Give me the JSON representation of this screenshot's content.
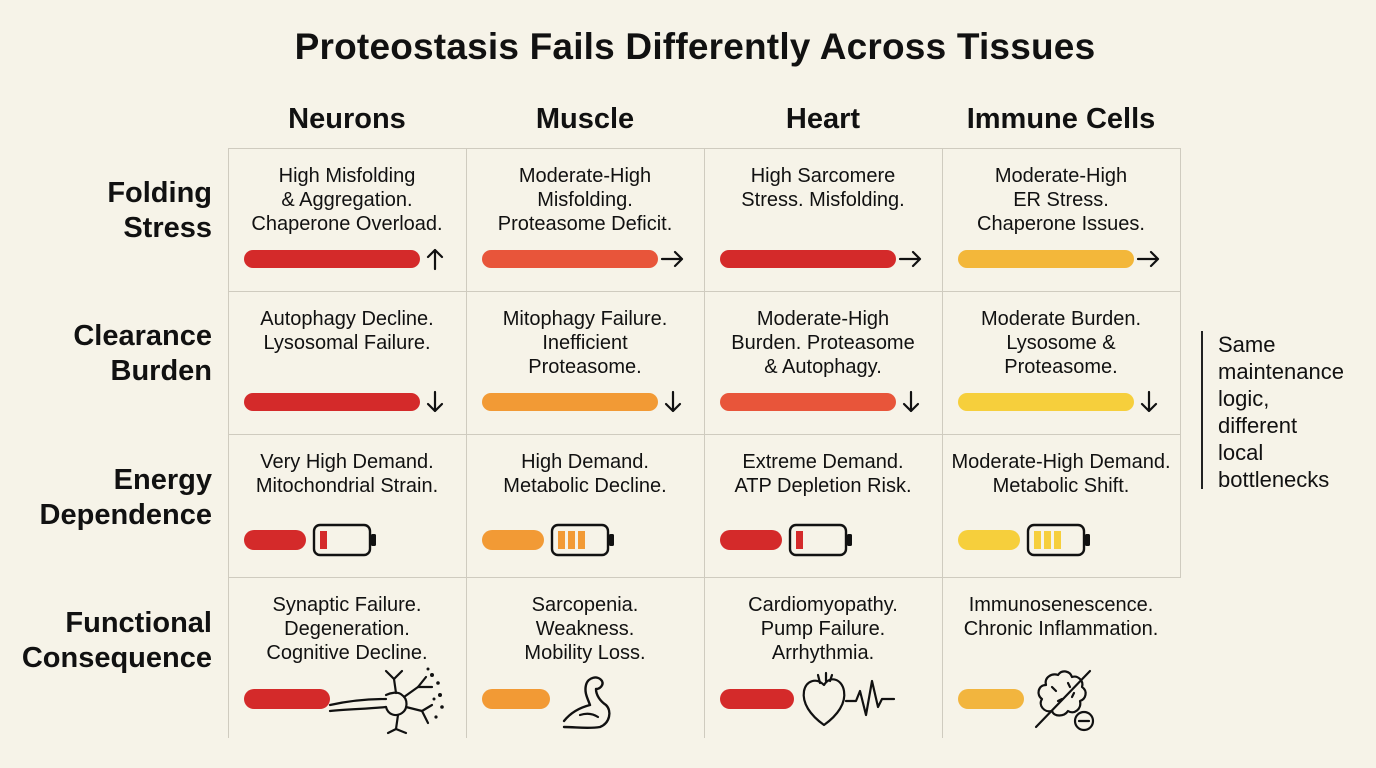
{
  "title": "Proteostasis Fails Differently Across Tissues",
  "columns": [
    "Neurons",
    "Muscle",
    "Heart",
    "Immune Cells"
  ],
  "rows": [
    {
      "label": "Folding\nStress",
      "indicator": "arrow"
    },
    {
      "label": "Clearance\nBurden",
      "indicator": "arrow"
    },
    {
      "label": "Energy\nDependence",
      "indicator": "battery"
    },
    {
      "label": "Functional\nConsequence",
      "indicator": "icon"
    }
  ],
  "cells": [
    [
      {
        "text": "High Misfolding\n& Aggregation.\nChaperone Overload.",
        "bar_color": "#d42a2a",
        "arrow": "up"
      },
      {
        "text": "Moderate-High\nMisfolding.\nProteasome Deficit.",
        "bar_color": "#e8553a",
        "arrow": "right"
      },
      {
        "text": "High Sarcomere\nStress. Misfolding.",
        "bar_color": "#d42a2a",
        "arrow": "right"
      },
      {
        "text": "Moderate-High\nER Stress.\nChaperone Issues.",
        "bar_color": "#f3b73a",
        "arrow": "right"
      }
    ],
    [
      {
        "text": "Autophagy Decline.\nLysosomal Failure.",
        "bar_color": "#d42a2a",
        "arrow": "down"
      },
      {
        "text": "Mitophagy Failure.\nInefficient\nProteasome.",
        "bar_color": "#f29a35",
        "arrow": "down"
      },
      {
        "text": "Moderate-High\nBurden. Proteasome\n& Autophagy.",
        "bar_color": "#e8553a",
        "arrow": "down"
      },
      {
        "text": "Moderate Burden.\nLysosome &\nProteasome.",
        "bar_color": "#f6cf3c",
        "arrow": "down"
      }
    ],
    [
      {
        "text": "Very High Demand.\nMitochondrial Strain.",
        "bar_color": "#d42a2a",
        "battery_level": 1,
        "battery_color": "#d42a2a"
      },
      {
        "text": "High Demand.\nMetabolic Decline.",
        "bar_color": "#f29a35",
        "battery_level": 3,
        "battery_color": "#f29a35"
      },
      {
        "text": "Extreme Demand.\nATP Depletion Risk.",
        "bar_color": "#d42a2a",
        "battery_level": 1,
        "battery_color": "#d42a2a"
      },
      {
        "text": "Moderate-High Demand.\nMetabolic Shift.",
        "bar_color": "#f6cf3c",
        "battery_level": 3,
        "battery_color": "#f6cf3c"
      }
    ],
    [
      {
        "text": "Synaptic Failure.\nDegeneration.\nCognitive Decline.",
        "bar_color": "#d42a2a",
        "icon": "neuron-icon"
      },
      {
        "text": "Sarcopenia.\nWeakness.\nMobility Loss.",
        "bar_color": "#f29a35",
        "icon": "flexed-arm-icon"
      },
      {
        "text": "Cardiomyopathy.\nPump Failure.\nArrhythmia.",
        "bar_color": "#d42a2a",
        "icon": "heart-ecg-icon"
      },
      {
        "text": "Immunosenescence.\nChronic Inflammation.",
        "bar_color": "#f2b53e",
        "icon": "immune-cell-crossed-icon"
      }
    ]
  ],
  "sidenote": "Same\nmaintenance\nlogic,\ndifferent\nlocal\nbottlenecks"
}
